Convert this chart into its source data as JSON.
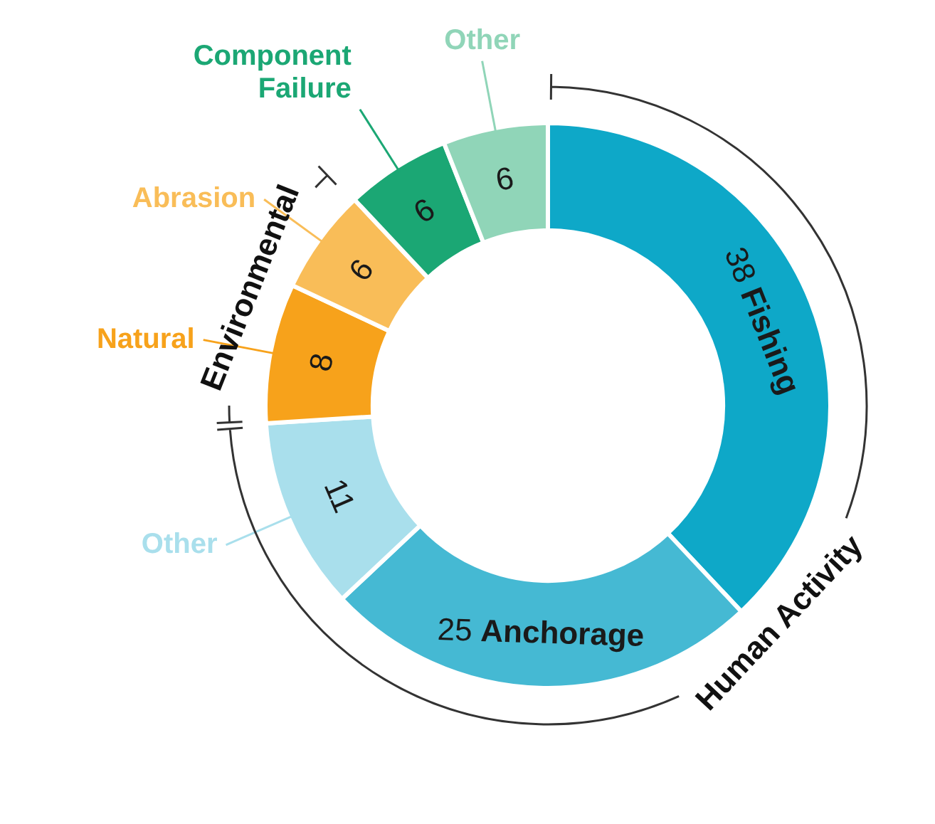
{
  "chart_data": {
    "type": "donut",
    "categories": [
      "Fishing",
      "Anchorage",
      "Other",
      "Natural",
      "Abrasion",
      "Component Failure",
      "Other"
    ],
    "values": [
      38,
      25,
      11,
      8,
      6,
      6,
      6
    ],
    "colors": [
      "#0ea8c8",
      "#45b9d3",
      "#a9dfec",
      "#f7a21b",
      "#f9bd58",
      "#1ba774",
      "#90d5b8"
    ],
    "data_labels": true,
    "annotations": [
      "Human Activity",
      "Environmental"
    ]
  }
}
